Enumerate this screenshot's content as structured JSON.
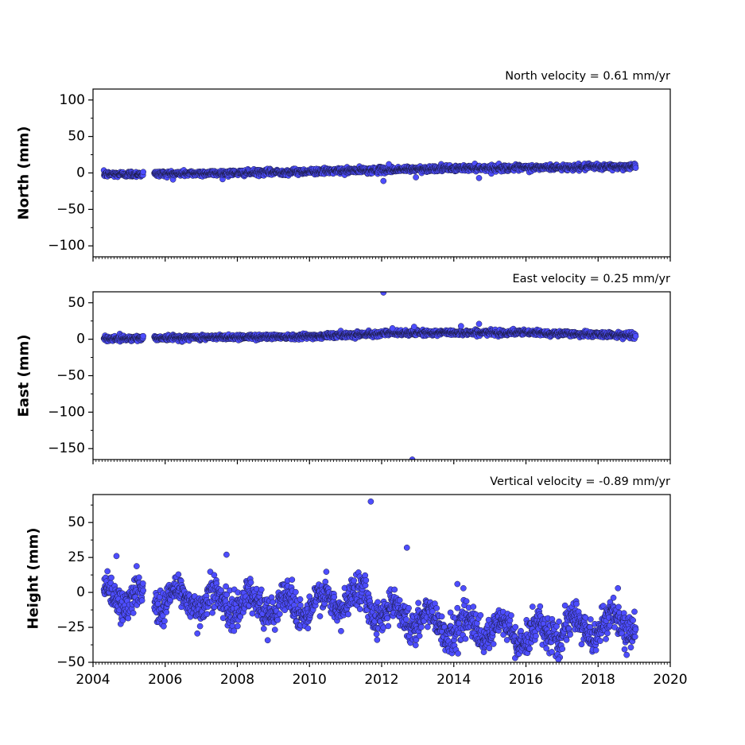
{
  "chart_data": [
    {
      "type": "scatter",
      "title": "North velocity = 0.61 mm/yr",
      "xlabel": "",
      "ylabel": "North (mm)",
      "xlim": [
        2004,
        2020
      ],
      "ylim": [
        -115,
        115
      ],
      "yticks": [
        100,
        50,
        0,
        -50,
        -100
      ],
      "ytick_labels": [
        "100",
        "50",
        "0",
        "−50",
        "−100"
      ],
      "xticks": [
        2004,
        2006,
        2008,
        2010,
        2012,
        2014,
        2016,
        2018,
        2020
      ],
      "xtick_labels": [],
      "grid": false,
      "marker_color": "#4d4dff",
      "edge_color": "#1a1a40",
      "data_span": [
        2004.3,
        2019.05
      ],
      "gap": [
        2005.4,
        2005.7
      ],
      "trend": [
        [
          2004.3,
          -2.0
        ],
        [
          2008.0,
          0.0
        ],
        [
          2010.0,
          2.0
        ],
        [
          2012.0,
          4.0
        ],
        [
          2014.0,
          6.5
        ],
        [
          2016.0,
          7.0
        ],
        [
          2019.05,
          9.0
        ]
      ],
      "noise_sd": 2.0,
      "seasonal_amplitude": 0,
      "outliers": [
        [
          2012.05,
          -11
        ],
        [
          2012.95,
          -6
        ],
        [
          2014.7,
          -7
        ],
        [
          2012.2,
          12
        ]
      ]
    },
    {
      "type": "scatter",
      "title": "East velocity = 0.25 mm/yr",
      "xlabel": "",
      "ylabel": "East (mm)",
      "xlim": [
        2004,
        2020
      ],
      "ylim": [
        -165,
        65
      ],
      "yticks": [
        50,
        0,
        -50,
        -100,
        -150
      ],
      "ytick_labels": [
        "50",
        "0",
        "−50",
        "−100",
        "−150"
      ],
      "xticks": [
        2004,
        2006,
        2008,
        2010,
        2012,
        2014,
        2016,
        2018,
        2020
      ],
      "xtick_labels": [],
      "grid": false,
      "marker_color": "#4d4dff",
      "edge_color": "#1a1a40",
      "data_span": [
        2004.3,
        2019.05
      ],
      "gap": [
        2005.4,
        2005.7
      ],
      "trend": [
        [
          2004.3,
          1.0
        ],
        [
          2008.0,
          3.0
        ],
        [
          2010.0,
          4.0
        ],
        [
          2012.0,
          8.0
        ],
        [
          2014.0,
          9.0
        ],
        [
          2016.0,
          9.0
        ],
        [
          2019.05,
          5.0
        ]
      ],
      "noise_sd": 1.8,
      "seasonal_amplitude": 0,
      "outliers": [
        [
          2012.05,
          64
        ],
        [
          2012.85,
          -165
        ],
        [
          2014.7,
          21
        ],
        [
          2012.3,
          15
        ],
        [
          2012.9,
          17
        ],
        [
          2014.2,
          18
        ]
      ]
    },
    {
      "type": "scatter",
      "title": "Vertical velocity = -0.89 mm/yr",
      "xlabel": "",
      "ylabel": "Height (mm)",
      "xlim": [
        2004,
        2020
      ],
      "ylim": [
        -50,
        70
      ],
      "yticks": [
        50,
        25,
        0,
        -25,
        -50
      ],
      "ytick_labels": [
        "50",
        "25",
        "0",
        "−25",
        "−50"
      ],
      "xticks": [
        2004,
        2006,
        2008,
        2010,
        2012,
        2014,
        2016,
        2018,
        2020
      ],
      "xtick_labels": [
        "2004",
        "2006",
        "2008",
        "2010",
        "2012",
        "2014",
        "2016",
        "2018",
        "2020"
      ],
      "grid": false,
      "marker_color": "#4d4dff",
      "edge_color": "#1a1a40",
      "data_span": [
        2004.3,
        2019.05
      ],
      "gap": [
        2005.4,
        2005.7
      ],
      "trend": [
        [
          2004.3,
          -3.0
        ],
        [
          2006.0,
          -4.0
        ],
        [
          2008.0,
          -8.0
        ],
        [
          2010.0,
          -10.0
        ],
        [
          2011.5,
          -3.0
        ],
        [
          2012.0,
          -13.0
        ],
        [
          2014.0,
          -25.0
        ],
        [
          2016.0,
          -30.0
        ],
        [
          2018.0,
          -24.0
        ],
        [
          2019.05,
          -22.0
        ]
      ],
      "noise_sd": 6.0,
      "seasonal_amplitude": 8,
      "outliers": [
        [
          2011.7,
          65
        ],
        [
          2012.7,
          32
        ],
        [
          2007.7,
          27
        ],
        [
          2004.65,
          26
        ],
        [
          2016.9,
          -48
        ],
        [
          2014.1,
          6
        ],
        [
          2018.55,
          3
        ]
      ]
    }
  ]
}
